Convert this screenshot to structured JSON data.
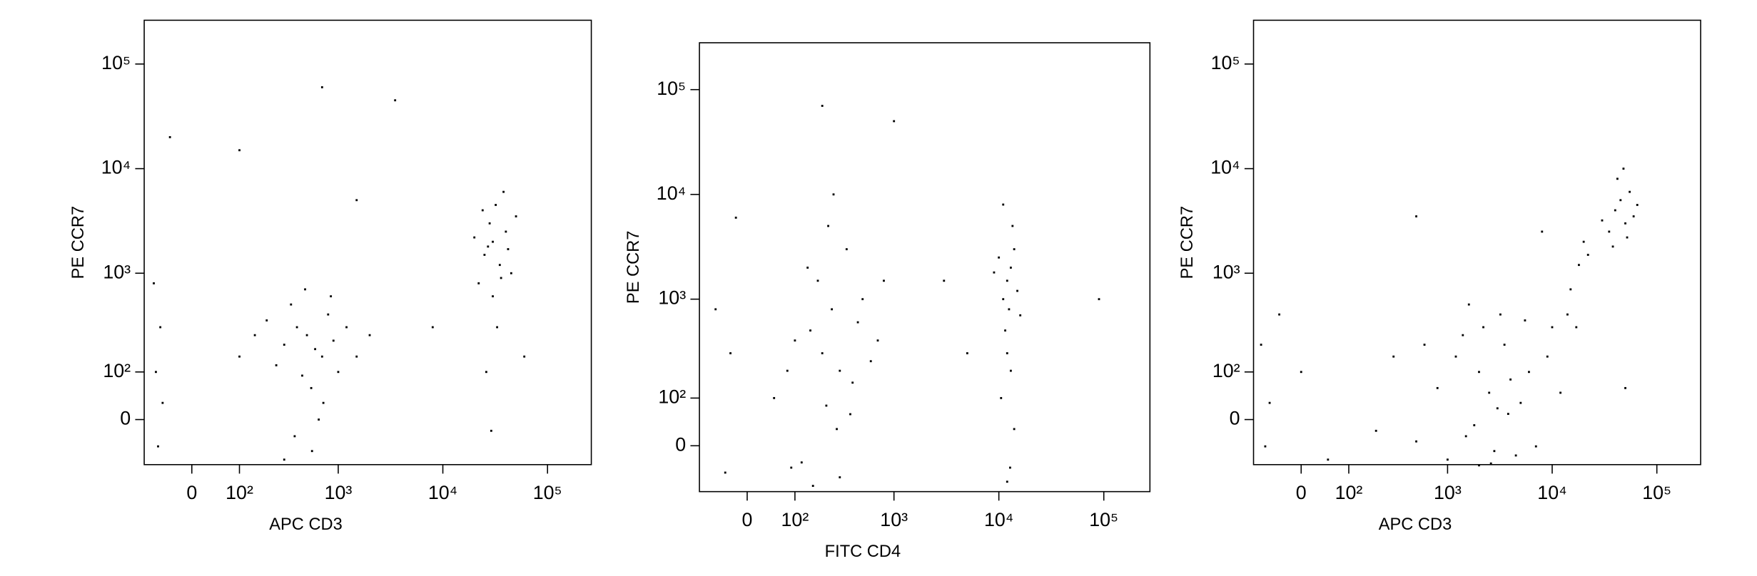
{
  "chart_data": [
    {
      "type": "scatter",
      "x_label": "APC CD3",
      "y_label": "PE CCR7",
      "xscale": "biexponential",
      "yscale": "biexponential",
      "xlim": [
        -100,
        262000
      ],
      "ylim": [
        -93,
        262000
      ],
      "xticks": [
        0,
        {
          "value": 100,
          "label": "10²"
        },
        {
          "value": 1000,
          "label": "10³"
        },
        {
          "value": 10000,
          "label": "10⁴"
        },
        {
          "value": 100000,
          "label": "10⁵"
        }
      ],
      "yticks": [
        0,
        {
          "value": 100,
          "label": "10²"
        },
        {
          "value": 1000,
          "label": "10³"
        },
        {
          "value": 10000,
          "label": "10⁴"
        },
        {
          "value": 100000,
          "label": "10⁵"
        }
      ],
      "series": [
        {
          "color": "#000000",
          "x": [
            300,
            500,
            700,
            400,
            600,
            250,
            800,
            450,
            350,
            900,
            550,
            1200,
            200,
            650,
            1500,
            150,
            480,
            720,
            380,
            1000,
            2000,
            100,
            560,
            850,
            300,
            25000,
            30000,
            35000,
            28000,
            40000,
            22000,
            32000,
            27000,
            45000,
            20000,
            38000,
            30000,
            33000,
            26000,
            50000,
            24000,
            42000,
            36000,
            29000,
            60000,
            -60,
            -70,
            -65,
            -75,
            -55,
            -40,
            100,
            700,
            3500,
            1500,
            8000
          ],
          "y": [
            200,
            250,
            150,
            300,
            180,
            120,
            400,
            90,
            500,
            220,
            60,
            300,
            350,
            0,
            150,
            250,
            700,
            30,
            -30,
            100,
            250,
            150,
            -60,
            600,
            -80,
            1500,
            2000,
            1200,
            3000,
            2500,
            800,
            4500,
            1800,
            1000,
            2200,
            6000,
            600,
            300,
            100,
            3500,
            4000,
            1700,
            900,
            -20,
            150,
            300,
            100,
            -50,
            800,
            30,
            20000,
            15000,
            60000,
            45000,
            5000,
            300
          ]
        }
      ]
    },
    {
      "type": "scatter",
      "x_label": "FITC CD4",
      "y_label": "PE CCR7",
      "xscale": "biexponential",
      "yscale": "biexponential",
      "xlim": [
        -100,
        275000
      ],
      "ylim": [
        -95,
        280000
      ],
      "xticks": [
        0,
        {
          "value": 100,
          "label": "10²"
        },
        {
          "value": 1000,
          "label": "10³"
        },
        {
          "value": 10000,
          "label": "10⁴"
        },
        {
          "value": 100000,
          "label": "10⁵"
        }
      ],
      "yticks": [
        0,
        {
          "value": 100,
          "label": "10²"
        },
        {
          "value": 1000,
          "label": "10³"
        },
        {
          "value": 10000,
          "label": "10⁴"
        },
        {
          "value": 100000,
          "label": "10⁵"
        }
      ],
      "series": [
        {
          "color": "#000000",
          "x": [
            200,
            150,
            300,
            250,
            100,
            400,
            180,
            350,
            220,
            280,
            120,
            450,
            160,
            600,
            80,
            500,
            230,
            300,
            700,
            50,
            -30,
            -60,
            140,
            380,
            260,
            90,
            800,
            -40,
            12000,
            13000,
            11000,
            14000,
            12500,
            10000,
            15000,
            11500,
            13500,
            12000,
            10500,
            14000,
            12800,
            9000,
            16000,
            11000,
            13000,
            12000,
            200,
            1000,
            90000,
            3000,
            -20,
            5000
          ],
          "y": [
            300,
            500,
            200,
            800,
            400,
            150,
            1500,
            3000,
            80,
            30,
            -30,
            600,
            -80,
            250,
            200,
            1000,
            5000,
            -60,
            400,
            100,
            300,
            800,
            2000,
            60,
            10000,
            -40,
            1500,
            -50,
            1500,
            2000,
            1000,
            3000,
            800,
            2500,
            1200,
            500,
            5000,
            300,
            100,
            30,
            -40,
            1800,
            700,
            8000,
            200,
            -70,
            70000,
            50000,
            1000,
            1500,
            6000,
            300
          ]
        }
      ]
    },
    {
      "type": "scatter",
      "x_label": "APC CD3",
      "y_label": "PE CCR7",
      "xscale": "biexponential",
      "yscale": "biexponential",
      "xlim": [
        -100,
        262000
      ],
      "ylim": [
        -93,
        262000
      ],
      "xticks": [
        0,
        {
          "value": 100,
          "label": "10²"
        },
        {
          "value": 1000,
          "label": "10³"
        },
        {
          "value": 10000,
          "label": "10⁴"
        },
        {
          "value": 100000,
          "label": "10⁵"
        }
      ],
      "yticks": [
        0,
        {
          "value": 100,
          "label": "10²"
        },
        {
          "value": 1000,
          "label": "10³"
        },
        {
          "value": 10000,
          "label": "10⁴"
        },
        {
          "value": 100000,
          "label": "10⁵"
        }
      ],
      "series": [
        {
          "color": "#000000",
          "x": [
            2500,
            2000,
            3000,
            1500,
            4000,
            1200,
            2800,
            3500,
            5000,
            1000,
            2200,
            6000,
            800,
            1800,
            7000,
            3200,
            600,
            9000,
            2600,
            1400,
            4500,
            10000,
            500,
            3800,
            12000,
            300,
            2000,
            5500,
            200,
            1600,
            15000,
            18000,
            20000,
            14000,
            22000,
            17000,
            40000,
            45000,
            50000,
            35000,
            55000,
            42000,
            60000,
            38000,
            48000,
            30000,
            65000,
            52000,
            -80,
            -70,
            -40,
            0,
            50,
            -60,
            500,
            8000,
            50000
          ],
          "y": [
            50,
            100,
            20,
            -30,
            80,
            150,
            -60,
            200,
            30,
            -80,
            300,
            100,
            60,
            -10,
            -50,
            400,
            200,
            150,
            -90,
            250,
            -70,
            300,
            -40,
            10,
            50,
            150,
            -95,
            350,
            -20,
            500,
            700,
            1200,
            2000,
            400,
            1500,
            300,
            4000,
            5000,
            3000,
            2500,
            6000,
            8000,
            3500,
            1800,
            10000,
            3200,
            4500,
            2200,
            200,
            -50,
            400,
            100,
            -80,
            30,
            3500,
            2500,
            60
          ]
        }
      ]
    }
  ]
}
